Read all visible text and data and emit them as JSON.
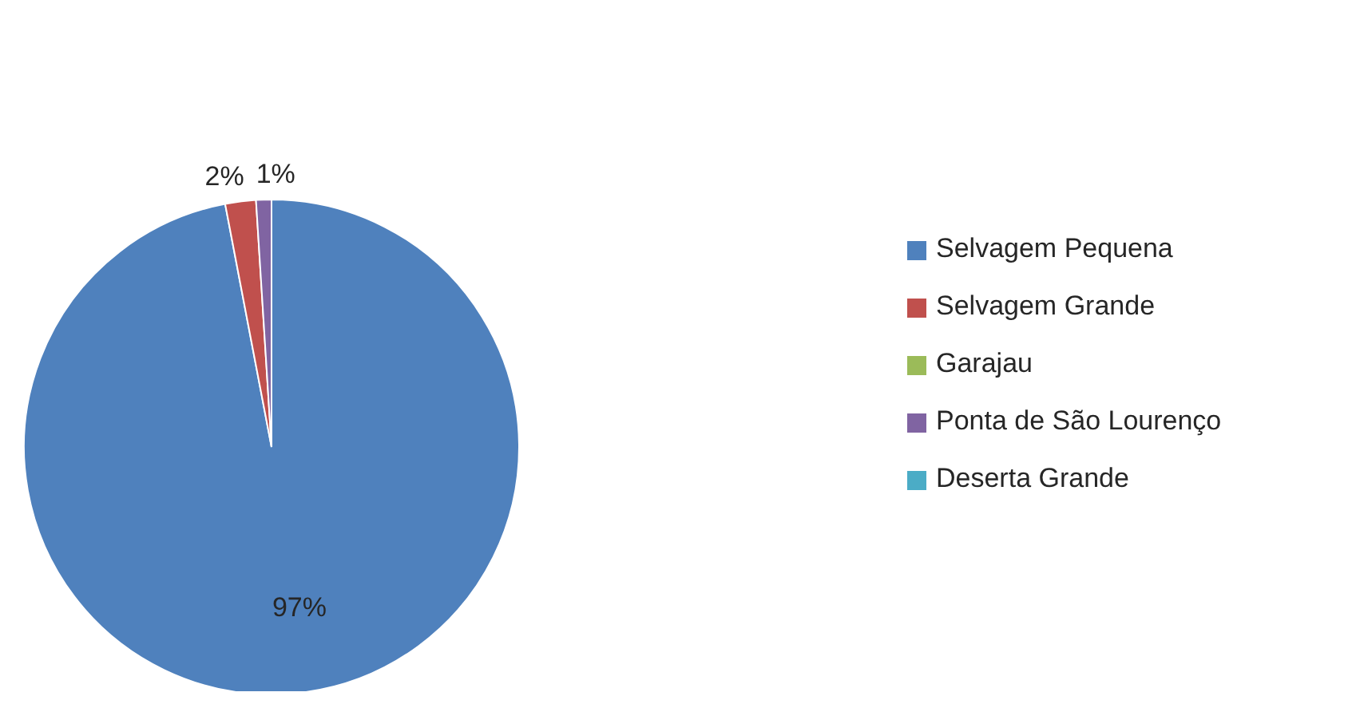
{
  "chart_data": {
    "type": "pie",
    "categories": [
      "Selvagem Pequena",
      "Selvagem Grande",
      "Garajau",
      "Ponta de São Lourenço",
      "Deserta Grande"
    ],
    "values": [
      97,
      2,
      0,
      1,
      0
    ],
    "colors": [
      "#4f81bd",
      "#c0504d",
      "#9bbb59",
      "#8064a2",
      "#4bacc6"
    ],
    "value_labels": [
      "97%",
      "2%",
      null,
      "1%",
      null
    ],
    "legend": "right"
  }
}
